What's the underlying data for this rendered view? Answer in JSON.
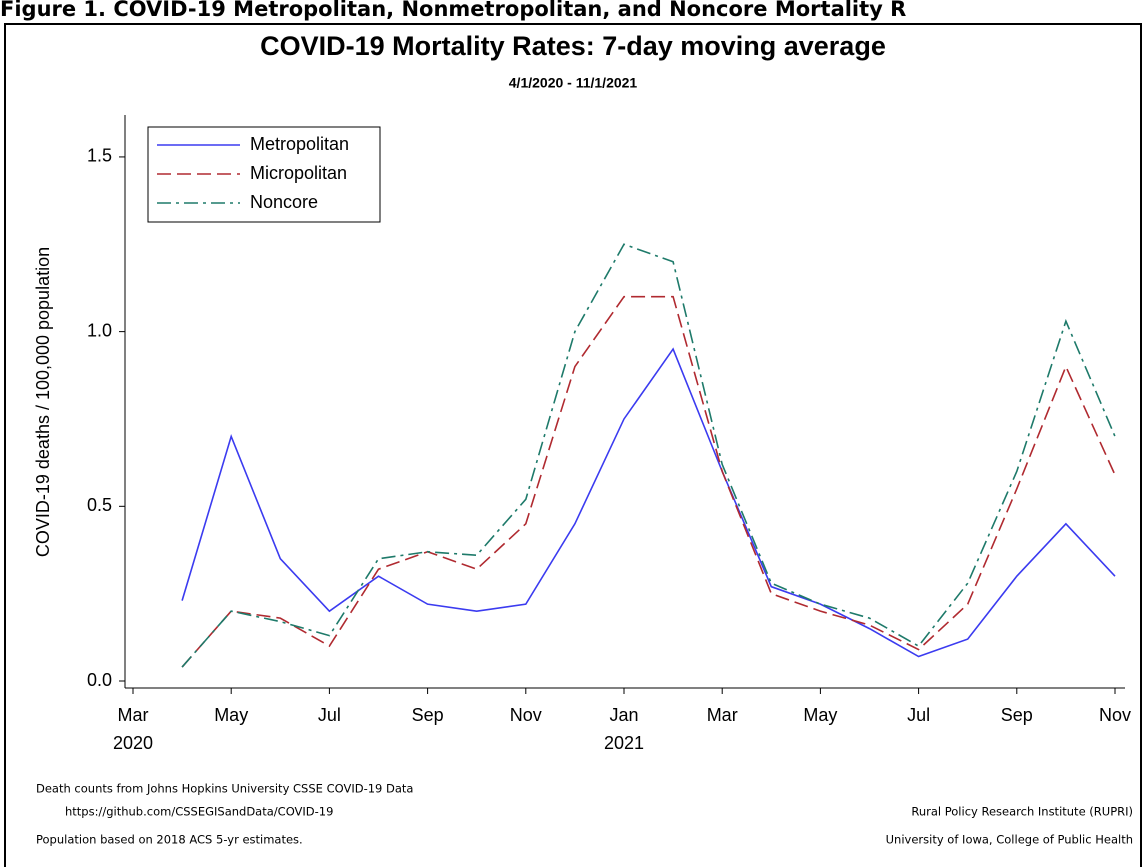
{
  "header": {
    "title": "Figure 1. COVID-19 Metropolitan, Nonmetropolitan, and Noncore Mortality R"
  },
  "chart_data": {
    "type": "line",
    "title": "COVID-19 Mortality Rates: 7-day moving average",
    "subtitle": "4/1/2020 - 11/1/2021",
    "y_label": "COVID-19 deaths / 100,000 population",
    "x": [
      "2020-04",
      "2020-05",
      "2020-06",
      "2020-07",
      "2020-08",
      "2020-09",
      "2020-10",
      "2020-11",
      "2020-12",
      "2021-01",
      "2021-02",
      "2021-03",
      "2021-04",
      "2021-05",
      "2021-06",
      "2021-07",
      "2021-08",
      "2021-09",
      "2021-10",
      "2021-11"
    ],
    "series": [
      {
        "name": "Metropolitan",
        "color": "#3b3bf0",
        "dash": "solid",
        "values": [
          0.23,
          0.7,
          0.35,
          0.2,
          0.3,
          0.22,
          0.2,
          0.22,
          0.45,
          0.75,
          0.95,
          0.6,
          0.27,
          0.22,
          0.15,
          0.07,
          0.12,
          0.3,
          0.45,
          0.3
        ]
      },
      {
        "name": "Micropolitan",
        "color": "#b02a30",
        "dash": "dashed",
        "values": [
          0.04,
          0.2,
          0.18,
          0.1,
          0.32,
          0.37,
          0.32,
          0.45,
          0.9,
          1.1,
          1.1,
          0.6,
          0.25,
          0.2,
          0.16,
          0.09,
          0.22,
          0.55,
          0.9,
          0.59
        ]
      },
      {
        "name": "Noncore",
        "color": "#1e7a6a",
        "dash": "dashdot",
        "values": [
          0.04,
          0.2,
          0.17,
          0.13,
          0.35,
          0.37,
          0.36,
          0.52,
          1.0,
          1.25,
          1.2,
          0.62,
          0.28,
          0.22,
          0.18,
          0.1,
          0.28,
          0.6,
          1.03,
          0.7
        ]
      }
    ],
    "xlim": [
      "2020-03",
      "2021-11"
    ],
    "xticks": [
      {
        "value": "2020-03",
        "label": "Mar"
      },
      {
        "value": "2020-05",
        "label": "May"
      },
      {
        "value": "2020-07",
        "label": "Jul"
      },
      {
        "value": "2020-09",
        "label": "Sep"
      },
      {
        "value": "2020-11",
        "label": "Nov"
      },
      {
        "value": "2021-01",
        "label": "Jan"
      },
      {
        "value": "2021-03",
        "label": "Mar"
      },
      {
        "value": "2021-05",
        "label": "May"
      },
      {
        "value": "2021-07",
        "label": "Jul"
      },
      {
        "value": "2021-09",
        "label": "Sep"
      },
      {
        "value": "2021-11",
        "label": "Nov"
      }
    ],
    "xtick_years": [
      {
        "value": "2020-03",
        "label": "2020"
      },
      {
        "value": "2021-01",
        "label": "2021"
      }
    ],
    "ylim": [
      -0.02,
      1.62
    ],
    "yticks": [
      {
        "value": 0,
        "label": "0.0"
      },
      {
        "value": 0.5,
        "label": "0.5"
      },
      {
        "value": 1,
        "label": "1.0"
      },
      {
        "value": 1.5,
        "label": "1.5"
      }
    ],
    "legend": "top-left",
    "notes_left": [
      "Death counts from Johns Hopkins University CSSE COVID-19 Data",
      "https://github.com/CSSEGISandData/COVID-19",
      "Population based on 2018 ACS 5-yr estimates."
    ],
    "notes_right": [
      "Rural Policy Research Institute (RUPRI)",
      "University of Iowa, College of Public Health"
    ]
  }
}
